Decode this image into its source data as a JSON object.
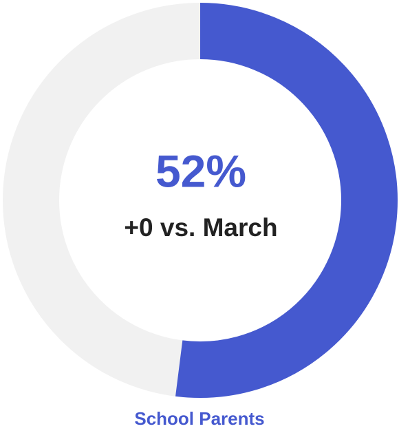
{
  "chart_data": {
    "type": "gauge",
    "value": 52,
    "value_label": "52%",
    "subtitle": "+0 vs. March",
    "label": "School Parents",
    "color": "#4559cf",
    "track_color": "#f1f1f1",
    "ylim": [
      0,
      100
    ]
  }
}
